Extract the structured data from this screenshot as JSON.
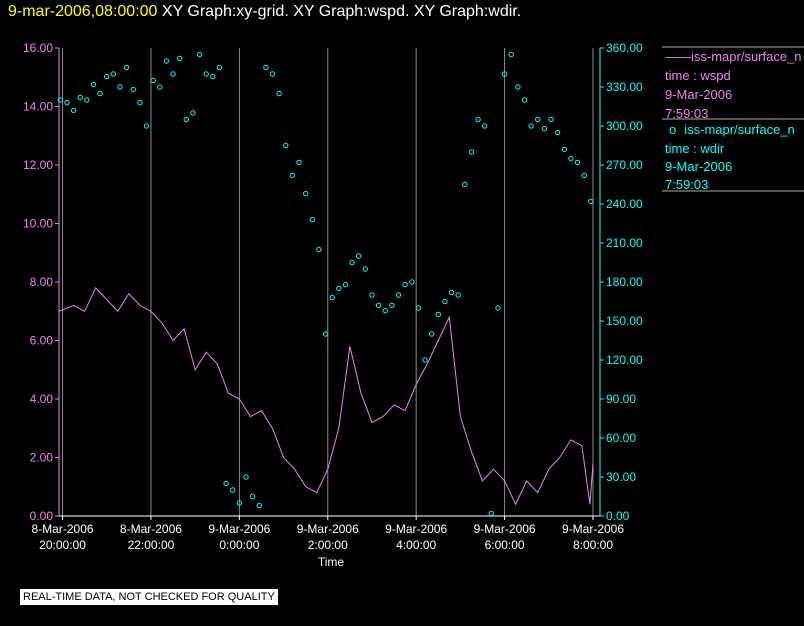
{
  "header": {
    "timestamp": "9-mar-2006,08:00:00",
    "titles": "XY Graph:xy-grid.  XY Graph:wspd.  XY Graph:wdir."
  },
  "disclaimer": "REAL-TIME DATA, NOT CHECKED FOR QUALITY",
  "legend": [
    {
      "marker": "——",
      "line1": "iss-mapr/surface_n",
      "line2": "time : wspd",
      "line3": "9-Mar-2006",
      "line4": "7:59:03",
      "color": "#ee82ee"
    },
    {
      "marker": "o",
      "line1": "iss-mapr/surface_n",
      "line2": "time : wdir",
      "line3": "9-Mar-2006",
      "line4": "7:59:03",
      "color": "#00ffff"
    }
  ],
  "chart_data": {
    "type": "line",
    "xlabel": "Time",
    "x_ticks": [
      {
        "date": "8-Mar-2006",
        "time": "20:00:00",
        "hours": 0
      },
      {
        "date": "8-Mar-2006",
        "time": "22:00:00",
        "hours": 2
      },
      {
        "date": "9-Mar-2006",
        "time": "0:00:00",
        "hours": 4
      },
      {
        "date": "9-Mar-2006",
        "time": "2:00:00",
        "hours": 6
      },
      {
        "date": "9-Mar-2006",
        "time": "4:00:00",
        "hours": 8
      },
      {
        "date": "9-Mar-2006",
        "time": "6:00:00",
        "hours": 10
      },
      {
        "date": "9-Mar-2006",
        "time": "8:00:00",
        "hours": 12
      }
    ],
    "xlim_hours": [
      -0.08,
      12.0
    ],
    "grid_x": true,
    "left_axis": {
      "color": "#ee82ee",
      "ylim": [
        0,
        16
      ],
      "ticks": [
        "0.00",
        "2.00",
        "4.00",
        "6.00",
        "8.00",
        "10.00",
        "12.00",
        "14.00",
        "16.00"
      ]
    },
    "right_axis": {
      "color": "#00ffff",
      "ylim": [
        0,
        360
      ],
      "ticks": [
        "0.00",
        "30.00",
        "60.00",
        "90.00",
        "120.00",
        "150.00",
        "180.00",
        "210.00",
        "240.00",
        "270.00",
        "300.00",
        "330.00",
        "360.00"
      ]
    },
    "series": [
      {
        "style": "line",
        "axis": "left",
        "color": "#ee82ee",
        "x": [
          -0.08,
          0.25,
          0.5,
          0.75,
          1.0,
          1.25,
          1.5,
          1.75,
          2.0,
          2.25,
          2.5,
          2.75,
          3.0,
          3.25,
          3.5,
          3.75,
          4.0,
          4.25,
          4.5,
          4.75,
          5.0,
          5.25,
          5.5,
          5.75,
          6.0,
          6.25,
          6.5,
          6.75,
          7.0,
          7.25,
          7.5,
          7.75,
          8.0,
          8.25,
          8.5,
          8.75,
          9.0,
          9.25,
          9.5,
          9.75,
          10.0,
          10.25,
          10.5,
          10.75,
          11.0,
          11.25,
          11.5,
          11.75,
          11.93,
          12.0
        ],
        "y": [
          7.0,
          7.2,
          7.0,
          7.8,
          7.4,
          7.0,
          7.6,
          7.2,
          7.0,
          6.6,
          6.0,
          6.4,
          5.0,
          5.6,
          5.2,
          4.2,
          4.0,
          3.4,
          3.6,
          3.0,
          2.0,
          1.6,
          1.0,
          0.8,
          1.6,
          3.0,
          5.8,
          4.2,
          3.2,
          3.4,
          3.8,
          3.6,
          4.5,
          5.2,
          6.0,
          6.8,
          3.4,
          2.2,
          1.2,
          1.6,
          1.2,
          0.4,
          1.2,
          0.8,
          1.6,
          2.0,
          2.6,
          2.4,
          0.4,
          1.8
        ]
      },
      {
        "style": "scatter",
        "axis": "right",
        "color": "#00ffff",
        "x": [
          -0.05,
          0.1,
          0.25,
          0.4,
          0.55,
          0.7,
          0.85,
          1.0,
          1.15,
          1.3,
          1.45,
          1.6,
          1.75,
          1.9,
          2.05,
          2.2,
          2.35,
          2.5,
          2.65,
          2.8,
          2.95,
          3.1,
          3.25,
          3.4,
          3.55,
          3.7,
          3.85,
          4.0,
          4.15,
          4.3,
          4.45,
          4.6,
          4.75,
          4.9,
          5.05,
          5.2,
          5.35,
          5.5,
          5.65,
          5.8,
          5.95,
          6.1,
          6.25,
          6.4,
          6.55,
          6.7,
          6.85,
          7.0,
          7.15,
          7.3,
          7.45,
          7.6,
          7.75,
          7.9,
          8.05,
          8.2,
          8.35,
          8.5,
          8.65,
          8.8,
          8.95,
          9.1,
          9.25,
          9.4,
          9.55,
          9.7,
          9.85,
          10.0,
          10.15,
          10.3,
          10.45,
          10.6,
          10.75,
          10.9,
          11.05,
          11.2,
          11.35,
          11.5,
          11.65,
          11.8,
          11.95
        ],
        "y": [
          320,
          318,
          312,
          322,
          320,
          332,
          325,
          338,
          340,
          330,
          345,
          328,
          318,
          300,
          335,
          330,
          350,
          340,
          352,
          305,
          310,
          355,
          340,
          338,
          345,
          25,
          20,
          10,
          30,
          15,
          8,
          345,
          340,
          325,
          285,
          262,
          272,
          248,
          228,
          205,
          140,
          168,
          175,
          178,
          195,
          200,
          190,
          170,
          162,
          158,
          162,
          170,
          178,
          180,
          160,
          120,
          140,
          155,
          165,
          172,
          170,
          255,
          280,
          305,
          300,
          2,
          160,
          340,
          355,
          330,
          320,
          300,
          305,
          298,
          305,
          295,
          282,
          275,
          272,
          262,
          242
        ]
      }
    ]
  }
}
